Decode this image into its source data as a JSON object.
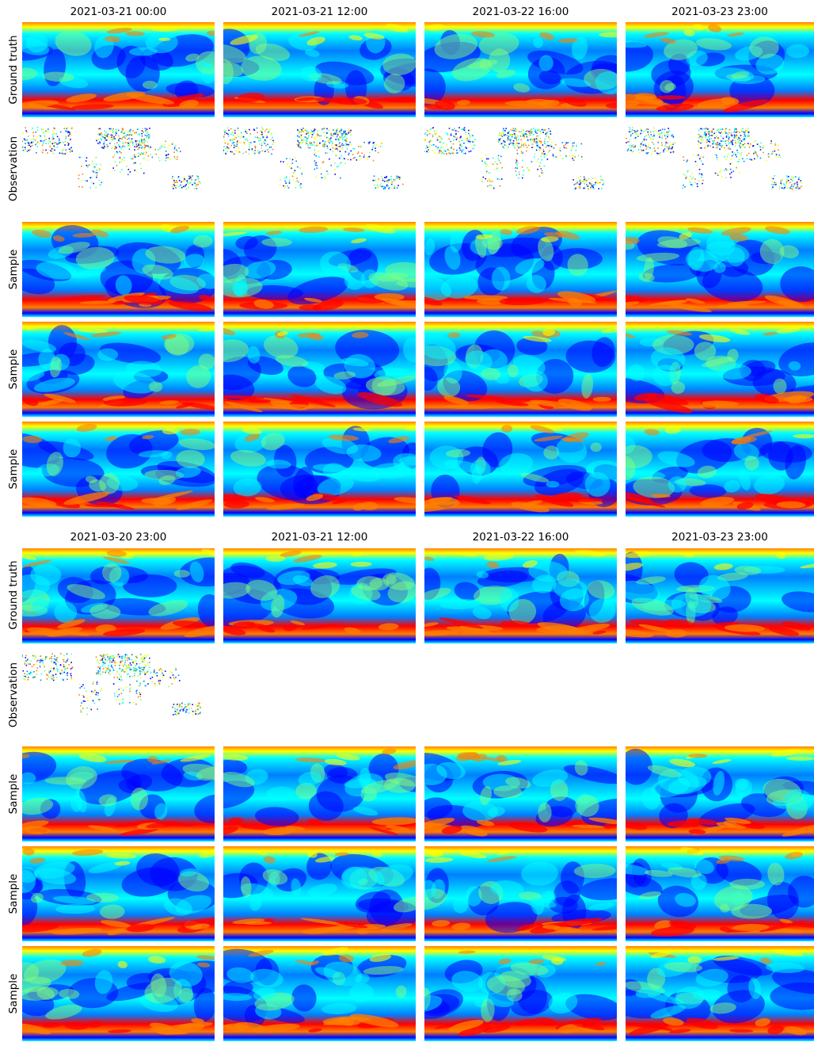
{
  "figure": {
    "colormap": "jet",
    "colormap_stops": [
      "#00007f",
      "#0000ff",
      "#007fff",
      "#00ffff",
      "#7fff7f",
      "#ffff00",
      "#ff7f00",
      "#ff0000",
      "#7f0000"
    ],
    "blocks": [
      {
        "column_titles": [
          "2021-03-21 00:00",
          "2021-03-21 12:00",
          "2021-03-22 16:00",
          "2021-03-23 23:00"
        ],
        "rows": [
          {
            "label": "Ground truth",
            "kind": "field"
          },
          {
            "label": "Observation",
            "kind": "observation",
            "columns_shown": 4
          },
          {
            "label": "Sample",
            "kind": "field"
          },
          {
            "label": "Sample",
            "kind": "field"
          },
          {
            "label": "Sample",
            "kind": "field"
          }
        ]
      },
      {
        "column_titles": [
          "2021-03-20 23:00",
          "2021-03-21 12:00",
          "2021-03-22 16:00",
          "2021-03-23 23:00"
        ],
        "rows": [
          {
            "label": "Ground truth",
            "kind": "field"
          },
          {
            "label": "Observation",
            "kind": "observation",
            "columns_shown": 1
          },
          {
            "label": "Sample",
            "kind": "field"
          },
          {
            "label": "Sample",
            "kind": "field"
          },
          {
            "label": "Sample",
            "kind": "field"
          }
        ]
      }
    ]
  }
}
